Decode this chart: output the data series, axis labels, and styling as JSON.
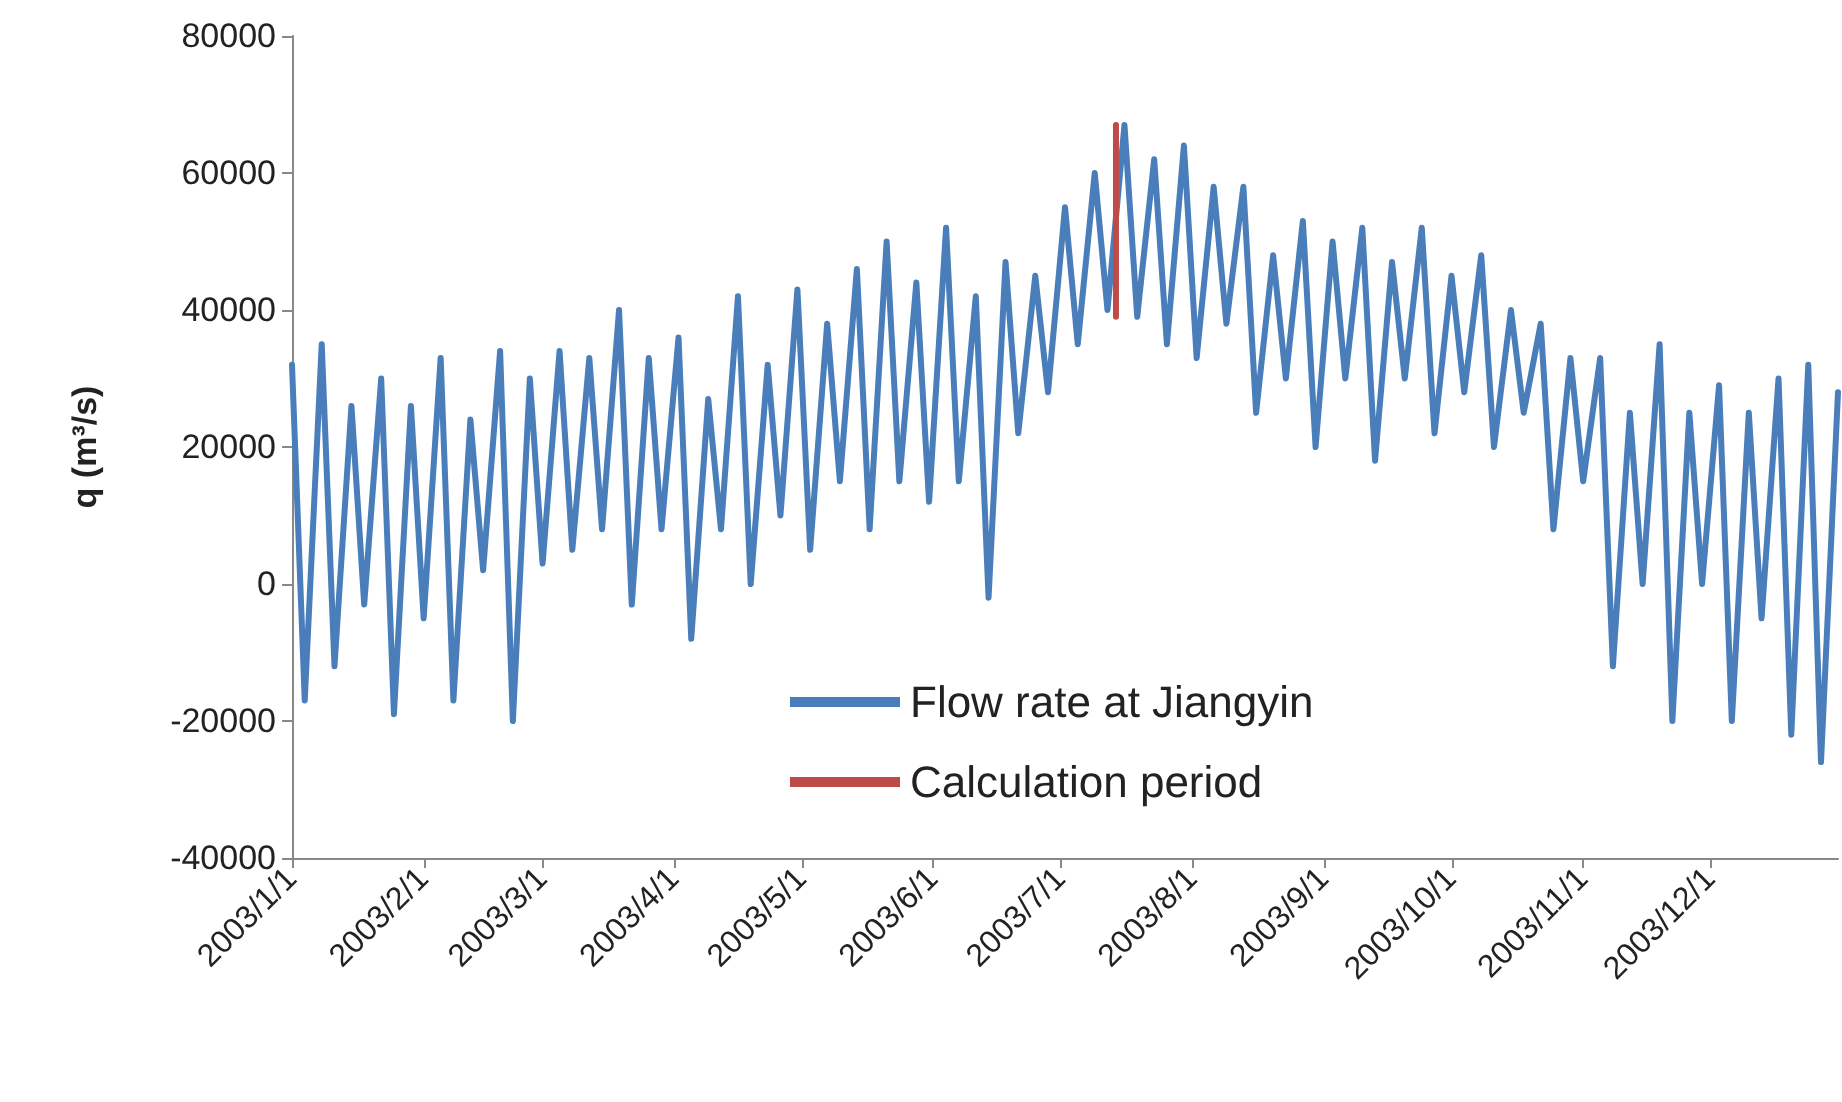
{
  "chart_data": {
    "type": "line",
    "ylabel": "q (m³/s)",
    "xlim": [
      "2003-01-01",
      "2003-12-31"
    ],
    "xticks": [
      {
        "value": "2003-01-01",
        "label": "2003/1/1"
      },
      {
        "value": "2003-02-01",
        "label": "2003/2/1"
      },
      {
        "value": "2003-03-01",
        "label": "2003/3/1"
      },
      {
        "value": "2003-04-01",
        "label": "2003/4/1"
      },
      {
        "value": "2003-05-01",
        "label": "2003/5/1"
      },
      {
        "value": "2003-06-01",
        "label": "2003/6/1"
      },
      {
        "value": "2003-07-01",
        "label": "2003/7/1"
      },
      {
        "value": "2003-08-01",
        "label": "2003/8/1"
      },
      {
        "value": "2003-09-01",
        "label": "2003/9/1"
      },
      {
        "value": "2003-10-01",
        "label": "2003/10/1"
      },
      {
        "value": "2003-11-01",
        "label": "2003/11/1"
      },
      {
        "value": "2003-12-01",
        "label": "2003/12/1"
      }
    ],
    "ylim": [
      -40000,
      80000
    ],
    "yticks": [
      -40000,
      -20000,
      0,
      20000,
      40000,
      60000,
      80000
    ],
    "grid": false,
    "legend": "bottom",
    "line_style": "solid",
    "series": [
      {
        "name": "Flow rate at Jiangyin",
        "color": "#4a7ebb",
        "x": [
          "2003-01-01",
          "2003-01-04",
          "2003-01-08",
          "2003-01-11",
          "2003-01-15",
          "2003-01-18",
          "2003-01-22",
          "2003-01-25",
          "2003-01-29",
          "2003-02-01",
          "2003-02-05",
          "2003-02-08",
          "2003-02-12",
          "2003-02-15",
          "2003-02-19",
          "2003-02-22",
          "2003-02-26",
          "2003-03-01",
          "2003-03-05",
          "2003-03-08",
          "2003-03-12",
          "2003-03-15",
          "2003-03-19",
          "2003-03-22",
          "2003-03-26",
          "2003-03-29",
          "2003-04-02",
          "2003-04-05",
          "2003-04-09",
          "2003-04-12",
          "2003-04-16",
          "2003-04-19",
          "2003-04-23",
          "2003-04-26",
          "2003-04-30",
          "2003-05-03",
          "2003-05-07",
          "2003-05-10",
          "2003-05-14",
          "2003-05-17",
          "2003-05-21",
          "2003-05-24",
          "2003-05-28",
          "2003-05-31",
          "2003-06-04",
          "2003-06-07",
          "2003-06-11",
          "2003-06-14",
          "2003-06-18",
          "2003-06-21",
          "2003-06-25",
          "2003-06-28",
          "2003-07-02",
          "2003-07-05",
          "2003-07-09",
          "2003-07-12",
          "2003-07-16",
          "2003-07-19",
          "2003-07-23",
          "2003-07-26",
          "2003-07-30",
          "2003-08-02",
          "2003-08-06",
          "2003-08-09",
          "2003-08-13",
          "2003-08-16",
          "2003-08-20",
          "2003-08-23",
          "2003-08-27",
          "2003-08-30",
          "2003-09-03",
          "2003-09-06",
          "2003-09-10",
          "2003-09-13",
          "2003-09-17",
          "2003-09-20",
          "2003-09-24",
          "2003-09-27",
          "2003-10-01",
          "2003-10-04",
          "2003-10-08",
          "2003-10-11",
          "2003-10-15",
          "2003-10-18",
          "2003-10-22",
          "2003-10-25",
          "2003-10-29",
          "2003-11-01",
          "2003-11-05",
          "2003-11-08",
          "2003-11-12",
          "2003-11-15",
          "2003-11-19",
          "2003-11-22",
          "2003-11-26",
          "2003-11-29",
          "2003-12-03",
          "2003-12-06",
          "2003-12-10",
          "2003-12-13",
          "2003-12-17",
          "2003-12-20",
          "2003-12-24",
          "2003-12-27",
          "2003-12-31"
        ],
        "values": [
          32000,
          -17000,
          35000,
          -12000,
          26000,
          -3000,
          30000,
          -19000,
          26000,
          -5000,
          33000,
          -17000,
          24000,
          2000,
          34000,
          -20000,
          30000,
          3000,
          34000,
          5000,
          33000,
          8000,
          40000,
          -3000,
          33000,
          8000,
          36000,
          -8000,
          27000,
          8000,
          42000,
          0,
          32000,
          10000,
          43000,
          5000,
          38000,
          15000,
          46000,
          8000,
          50000,
          15000,
          44000,
          12000,
          52000,
          15000,
          42000,
          -2000,
          47000,
          22000,
          45000,
          28000,
          55000,
          35000,
          60000,
          40000,
          67000,
          39000,
          62000,
          35000,
          64000,
          33000,
          58000,
          38000,
          58000,
          25000,
          48000,
          30000,
          53000,
          20000,
          50000,
          30000,
          52000,
          18000,
          47000,
          30000,
          52000,
          22000,
          45000,
          28000,
          48000,
          20000,
          40000,
          25000,
          38000,
          8000,
          33000,
          15000,
          33000,
          -12000,
          25000,
          0,
          35000,
          -20000,
          25000,
          0,
          29000,
          -20000,
          25000,
          -5000,
          30000,
          -22000,
          32000,
          -26000,
          28000
        ]
      },
      {
        "name": "Calculation period",
        "color": "#be4b48",
        "x": [
          "2003-07-14",
          "2003-07-14"
        ],
        "values": [
          39000,
          67000
        ]
      }
    ]
  }
}
